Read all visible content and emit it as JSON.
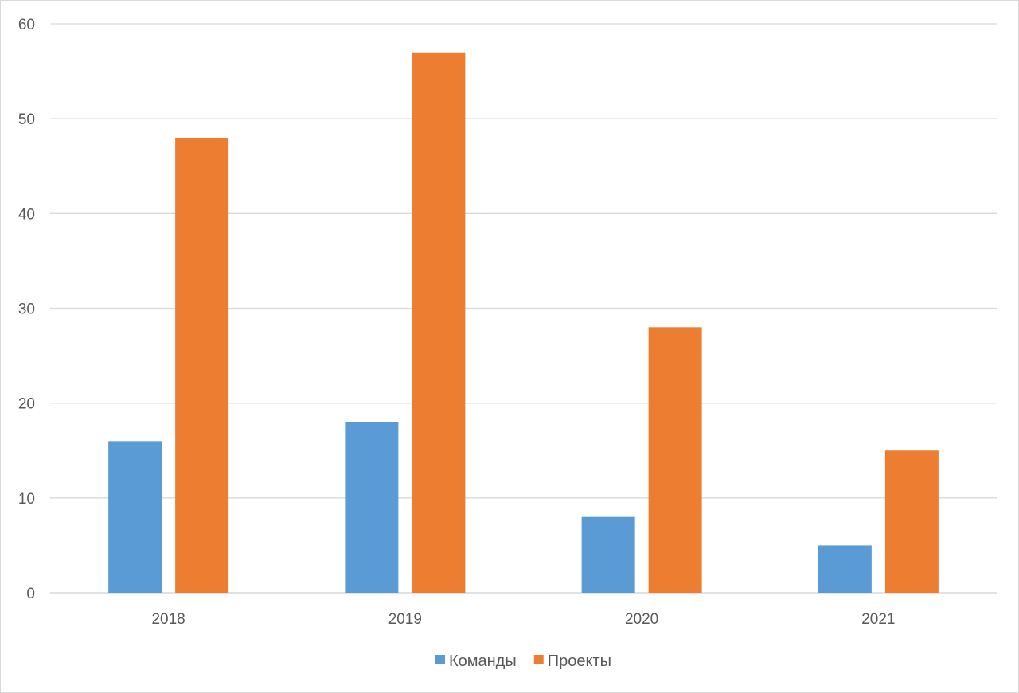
{
  "chart_data": {
    "type": "bar",
    "categories": [
      "2018",
      "2019",
      "2020",
      "2021"
    ],
    "series": [
      {
        "name": "Команды",
        "color": "#5b9bd5",
        "values": [
          16,
          18,
          8,
          5
        ]
      },
      {
        "name": "Проекты",
        "color": "#ed7d31",
        "values": [
          48,
          57,
          28,
          15
        ]
      }
    ],
    "ylim": [
      0,
      60
    ],
    "yticks": [
      0,
      10,
      20,
      30,
      40,
      50,
      60
    ],
    "title": "",
    "xlabel": "",
    "ylabel": "",
    "grid": true,
    "legend_position": "bottom"
  }
}
